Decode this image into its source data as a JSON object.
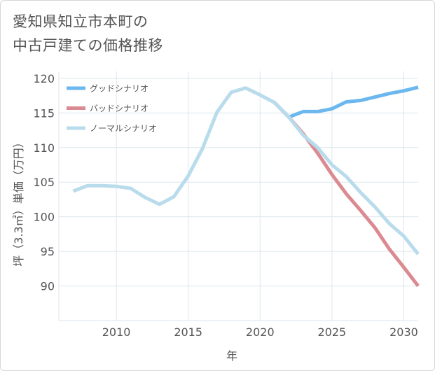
{
  "title_lines": [
    "愛知県知立市本町の",
    "中古戸建ての価格推移"
  ],
  "chart_data": {
    "type": "line",
    "title": "愛知県知立市本町の中古戸建ての価格推移",
    "xlabel": "年",
    "ylabel": "坪（3.3㎡）単価（万円）",
    "xlim": [
      2006,
      2031
    ],
    "ylim": [
      85,
      121
    ],
    "x_ticks": [
      2010,
      2015,
      2020,
      2025,
      2030
    ],
    "y_ticks": [
      90,
      95,
      100,
      105,
      110,
      115,
      120
    ],
    "legend_position": "top-left",
    "series": [
      {
        "name": "グッドシナリオ",
        "color": "#6cb8ee",
        "x": [
          2021,
          2022,
          2023,
          2024,
          2025,
          2026,
          2027,
          2028,
          2029,
          2030,
          2031
        ],
        "values": [
          116.5,
          114.4,
          115.2,
          115.2,
          115.6,
          116.6,
          116.8,
          117.3,
          117.8,
          118.2,
          118.7
        ]
      },
      {
        "name": "バッドシナリオ",
        "color": "#dc8a92",
        "x": [
          2021,
          2022,
          2023,
          2024,
          2025,
          2026,
          2027,
          2028,
          2029,
          2030,
          2031
        ],
        "values": [
          116.5,
          114.4,
          112.0,
          109.2,
          106.1,
          103.3,
          100.9,
          98.4,
          95.3,
          92.7,
          90.0
        ]
      },
      {
        "name": "ノーマルシナリオ",
        "color": "#b9dcec",
        "x": [
          2007,
          2008,
          2009,
          2010,
          2011,
          2012,
          2013,
          2014,
          2015,
          2016,
          2017,
          2018,
          2019,
          2020,
          2021,
          2022,
          2023,
          2024,
          2025,
          2026,
          2027,
          2028,
          2029,
          2030,
          2031
        ],
        "values": [
          103.7,
          104.5,
          104.5,
          104.4,
          104.1,
          102.8,
          101.8,
          102.9,
          105.9,
          109.9,
          115.1,
          118.0,
          118.6,
          117.6,
          116.5,
          114.4,
          111.8,
          110.0,
          107.5,
          105.8,
          103.5,
          101.4,
          99.0,
          97.2,
          94.6
        ]
      }
    ]
  }
}
